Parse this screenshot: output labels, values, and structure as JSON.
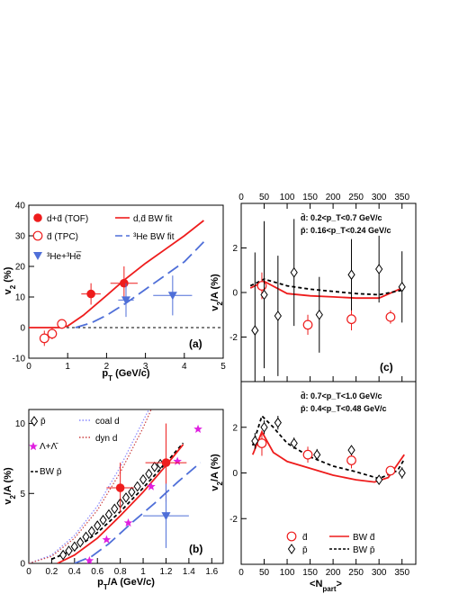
{
  "chart_data": [
    {
      "panel": "a",
      "type": "scatter",
      "tag": "(a)",
      "xlabel": "p_T (GeV/c)",
      "ylabel": "v_2 (%)",
      "xlim": [
        0,
        5
      ],
      "ylim": [
        -10,
        40
      ],
      "xticks": [
        0,
        1,
        2,
        3,
        4,
        5
      ],
      "yticks": [
        -10,
        0,
        10,
        20,
        30,
        40
      ],
      "reference_line_y": 0,
      "legend": [
        {
          "label": "d+d̄ (TOF)",
          "marker": "filled-circle",
          "color": "#ee1c1c"
        },
        {
          "label": "d̄ (TPC)",
          "marker": "open-circle",
          "color": "#ee1c1c"
        },
        {
          "label": "³He+³He̅",
          "marker": "filled-triangle-down",
          "color": "#4f6fd8"
        },
        {
          "label": "d,d̄ BW fit",
          "line": "solid",
          "color": "#ee1c1c"
        },
        {
          "label": "³He BW fit",
          "line": "long-dash",
          "color": "#4f6fd8"
        }
      ],
      "series": [
        {
          "name": "d+d̄ (TOF)",
          "style": "filled-circle",
          "color": "#ee1c1c",
          "points": [
            {
              "x": 1.6,
              "y": 11,
              "yerr": 3.5,
              "xerr": 0.25
            },
            {
              "x": 2.45,
              "y": 14.5,
              "yerr": 5.5,
              "xerr": 0.35
            }
          ]
        },
        {
          "name": "d̄ (TPC)",
          "style": "open-circle",
          "color": "#ee1c1c",
          "points": [
            {
              "x": 0.4,
              "y": -3.5,
              "yerr": 2.5
            },
            {
              "x": 0.6,
              "y": -2,
              "yerr": 1.8
            },
            {
              "x": 0.85,
              "y": 1.2,
              "yerr": 1.5
            }
          ]
        },
        {
          "name": "³He+³He̅",
          "style": "filled-triangle-down",
          "color": "#4f6fd8",
          "points": [
            {
              "x": 2.5,
              "y": 9,
              "yerr": 5.5,
              "xerr": 0.2
            },
            {
              "x": 3.7,
              "y": 10.5,
              "yerr": 6.5,
              "xerr": 0.5
            }
          ]
        },
        {
          "name": "d,d̄ BW fit",
          "style": "line-solid",
          "color": "#ee1c1c",
          "points": [
            {
              "x": 0,
              "y": 0
            },
            {
              "x": 0.8,
              "y": 0
            },
            {
              "x": 1,
              "y": 0.5
            },
            {
              "x": 1.4,
              "y": 4
            },
            {
              "x": 2,
              "y": 10.5
            },
            {
              "x": 2.5,
              "y": 16
            },
            {
              "x": 3,
              "y": 21
            },
            {
              "x": 3.5,
              "y": 25.5
            },
            {
              "x": 4,
              "y": 30
            },
            {
              "x": 4.5,
              "y": 35
            }
          ]
        },
        {
          "name": "³He BW fit",
          "style": "line-dash",
          "color": "#4f6fd8",
          "points": [
            {
              "x": 1.2,
              "y": 0
            },
            {
              "x": 1.6,
              "y": 1.5
            },
            {
              "x": 2,
              "y": 4
            },
            {
              "x": 2.5,
              "y": 8
            },
            {
              "x": 3,
              "y": 12.5
            },
            {
              "x": 3.5,
              "y": 17
            },
            {
              "x": 4,
              "y": 21.5
            },
            {
              "x": 4.5,
              "y": 28
            }
          ]
        }
      ]
    },
    {
      "panel": "b",
      "type": "scatter",
      "tag": "(b)",
      "xlabel": "p_T/A (GeV/c)",
      "ylabel": "v_2/A (%)",
      "xlim": [
        0,
        1.7
      ],
      "ylim": [
        0,
        11
      ],
      "xticks": [
        0,
        0.2,
        0.4,
        0.6,
        0.8,
        1,
        1.2,
        1.4,
        1.6
      ],
      "yticks": [
        0,
        5,
        10
      ],
      "legend": [
        {
          "label": "p̄",
          "marker": "open-diamond",
          "color": "#000000"
        },
        {
          "label": "Λ+Λ̄",
          "marker": "star",
          "color": "#e020e0"
        },
        {
          "label": "BW p̄",
          "line": "short-dash",
          "color": "#000000"
        },
        {
          "label": "coal d",
          "line": "dotted",
          "color": "#8888ff"
        },
        {
          "label": "dyn d",
          "line": "dotted",
          "color": "#cc4444"
        }
      ],
      "series": [
        {
          "name": "p̄",
          "style": "open-diamond",
          "color": "#000000",
          "points": [
            {
              "x": 0.3,
              "y": 0.6
            },
            {
              "x": 0.35,
              "y": 0.9
            },
            {
              "x": 0.4,
              "y": 1.2
            },
            {
              "x": 0.45,
              "y": 1.5
            },
            {
              "x": 0.5,
              "y": 1.9
            },
            {
              "x": 0.55,
              "y": 2.3
            },
            {
              "x": 0.6,
              "y": 2.7
            },
            {
              "x": 0.65,
              "y": 3.1
            },
            {
              "x": 0.7,
              "y": 3.5
            },
            {
              "x": 0.75,
              "y": 3.9
            },
            {
              "x": 0.8,
              "y": 4.3
            },
            {
              "x": 0.85,
              "y": 4.7
            },
            {
              "x": 0.9,
              "y": 5.1
            },
            {
              "x": 0.95,
              "y": 5.5
            },
            {
              "x": 1.0,
              "y": 6.0
            },
            {
              "x": 1.05,
              "y": 6.4
            },
            {
              "x": 1.1,
              "y": 6.9
            },
            {
              "x": 1.15,
              "y": 7.1
            }
          ]
        },
        {
          "name": "Λ+Λ̄",
          "style": "star",
          "color": "#e020e0",
          "points": [
            {
              "x": 0.53,
              "y": 0.2
            },
            {
              "x": 0.68,
              "y": 1.7
            },
            {
              "x": 0.87,
              "y": 2.9
            },
            {
              "x": 1.07,
              "y": 5.5
            },
            {
              "x": 1.3,
              "y": 7.3
            },
            {
              "x": 1.48,
              "y": 9.6
            }
          ]
        },
        {
          "name": "d (a)",
          "style": "filled-circle",
          "color": "#ee1c1c",
          "points": [
            {
              "x": 0.8,
              "y": 5.4,
              "yerr": 1.8,
              "xerr": 0.12
            },
            {
              "x": 1.2,
              "y": 7.2,
              "yerr": 2.8,
              "xerr": 0.18
            }
          ]
        },
        {
          "name": "³He (a)",
          "style": "filled-triangle-down",
          "color": "#4f6fd8",
          "points": [
            {
              "x": 1.2,
              "y": 3.4,
              "yerr": 2.3,
              "xerr": 0.2
            }
          ]
        },
        {
          "name": "BW p̄",
          "style": "line-shortdash",
          "color": "#000000",
          "points": [
            {
              "x": 0.2,
              "y": 0.3
            },
            {
              "x": 0.4,
              "y": 1.0
            },
            {
              "x": 0.6,
              "y": 2.2
            },
            {
              "x": 0.8,
              "y": 3.7
            },
            {
              "x": 1.0,
              "y": 5.4
            },
            {
              "x": 1.2,
              "y": 7.2
            },
            {
              "x": 1.35,
              "y": 8.6
            }
          ]
        },
        {
          "name": "BW d",
          "style": "line-solid",
          "color": "#ee1c1c",
          "points": [
            {
              "x": 0.25,
              "y": 0
            },
            {
              "x": 0.4,
              "y": 0.6
            },
            {
              "x": 0.6,
              "y": 1.8
            },
            {
              "x": 0.8,
              "y": 3.4
            },
            {
              "x": 1.0,
              "y": 5.1
            },
            {
              "x": 1.2,
              "y": 7.0
            },
            {
              "x": 1.35,
              "y": 8.5
            }
          ]
        },
        {
          "name": "BW ³He",
          "style": "line-dash",
          "color": "#4f6fd8",
          "points": [
            {
              "x": 0.4,
              "y": 0
            },
            {
              "x": 0.55,
              "y": 0.5
            },
            {
              "x": 0.7,
              "y": 1.4
            },
            {
              "x": 0.9,
              "y": 2.9
            },
            {
              "x": 1.1,
              "y": 4.3
            },
            {
              "x": 1.3,
              "y": 5.8
            },
            {
              "x": 1.5,
              "y": 7.2
            }
          ]
        },
        {
          "name": "coal d",
          "style": "line-dotted",
          "color": "#8888ff",
          "points": [
            {
              "x": 0,
              "y": 0
            },
            {
              "x": 0.2,
              "y": 0.6
            },
            {
              "x": 0.4,
              "y": 2.0
            },
            {
              "x": 0.6,
              "y": 4.1
            },
            {
              "x": 0.8,
              "y": 6.9
            },
            {
              "x": 1.0,
              "y": 10.2
            },
            {
              "x": 1.05,
              "y": 11
            }
          ]
        },
        {
          "name": "dyn d",
          "style": "line-dotted",
          "color": "#cc4444",
          "points": [
            {
              "x": 0,
              "y": 0
            },
            {
              "x": 0.2,
              "y": 0.5
            },
            {
              "x": 0.4,
              "y": 1.8
            },
            {
              "x": 0.6,
              "y": 3.8
            },
            {
              "x": 0.8,
              "y": 6.5
            },
            {
              "x": 1.0,
              "y": 9.7
            },
            {
              "x": 1.07,
              "y": 11
            }
          ]
        }
      ]
    },
    {
      "panel": "c-top",
      "type": "scatter",
      "tag": "(c)",
      "xlabel": "",
      "ylabel": "v_2/A (%)",
      "xlim": [
        0,
        380
      ],
      "ylim": [
        -4,
        4
      ],
      "xticks": [
        0,
        50,
        100,
        150,
        200,
        250,
        300,
        350
      ],
      "top_axis_labels": [
        "0",
        "50",
        "100",
        "150",
        "200",
        "250",
        "300",
        "350"
      ],
      "yticks": [
        -2,
        0,
        2
      ],
      "cuts": [
        "d̄: 0.2<p_T<0.7 GeV/c",
        "p̄: 0.16<p_T<0.24 GeV/c"
      ],
      "series": [
        {
          "name": "d̄",
          "style": "open-circle",
          "color": "#ee1c1c",
          "points": [
            {
              "x": 45,
              "y": 0.3,
              "yerr": 0.6
            },
            {
              "x": 145,
              "y": -1.45,
              "yerr": 0.45
            },
            {
              "x": 240,
              "y": -1.2,
              "yerr": 0.5
            },
            {
              "x": 325,
              "y": -1.1,
              "yerr": 0.3
            }
          ]
        },
        {
          "name": "p̄",
          "style": "open-diamond",
          "color": "#000000",
          "points": [
            {
              "x": 30,
              "y": -1.7,
              "yerr": 3.5
            },
            {
              "x": 50,
              "y": -0.1,
              "yerr": 3.3
            },
            {
              "x": 80,
              "y": -1.05,
              "yerr": 2.7
            },
            {
              "x": 115,
              "y": 0.9,
              "yerr": 2.4
            },
            {
              "x": 170,
              "y": -1.0,
              "yerr": 1.7
            },
            {
              "x": 240,
              "y": 0.8,
              "yerr": 1.6
            },
            {
              "x": 300,
              "y": 1.05,
              "yerr": 1.5
            },
            {
              "x": 350,
              "y": 0.25,
              "yerr": 1.6
            }
          ]
        },
        {
          "name": "BW d̄",
          "style": "line-solid",
          "color": "#ee1c1c",
          "points": [
            {
              "x": 20,
              "y": 0.2
            },
            {
              "x": 50,
              "y": 0.5
            },
            {
              "x": 100,
              "y": -0.05
            },
            {
              "x": 150,
              "y": -0.15
            },
            {
              "x": 200,
              "y": -0.2
            },
            {
              "x": 250,
              "y": -0.25
            },
            {
              "x": 300,
              "y": -0.25
            },
            {
              "x": 350,
              "y": 0.2
            }
          ]
        },
        {
          "name": "BW p̄",
          "style": "line-shortdash",
          "color": "#000000",
          "points": [
            {
              "x": 20,
              "y": 0.3
            },
            {
              "x": 50,
              "y": 0.6
            },
            {
              "x": 100,
              "y": 0.3
            },
            {
              "x": 150,
              "y": 0.15
            },
            {
              "x": 200,
              "y": 0.05
            },
            {
              "x": 250,
              "y": -0.05
            },
            {
              "x": 300,
              "y": -0.1
            },
            {
              "x": 350,
              "y": 0.1
            }
          ]
        }
      ]
    },
    {
      "panel": "c-bottom",
      "type": "scatter",
      "tag": "",
      "xlabel": "<N_part>",
      "ylabel": "v_2/A (%)",
      "xlim": [
        0,
        380
      ],
      "ylim": [
        -4,
        4
      ],
      "xticks": [
        0,
        50,
        100,
        150,
        200,
        250,
        300,
        350
      ],
      "yticks": [
        -2,
        0,
        2
      ],
      "cuts": [
        "d̄: 0.7<p_T<1.0 GeV/c",
        "p̄: 0.4<p_T<0.48 GeV/c"
      ],
      "legend": [
        {
          "label": "d̄",
          "marker": "open-circle",
          "color": "#ee1c1c"
        },
        {
          "label": "p̄",
          "marker": "open-diamond",
          "color": "#000000"
        },
        {
          "label": "BW d̄",
          "line": "solid",
          "color": "#ee1c1c"
        },
        {
          "label": "BW p̄",
          "line": "short-dash",
          "color": "#000000"
        }
      ],
      "series": [
        {
          "name": "d̄",
          "style": "open-circle",
          "color": "#ee1c1c",
          "points": [
            {
              "x": 45,
              "y": 1.3,
              "yerr": 0.55
            },
            {
              "x": 145,
              "y": 0.8,
              "yerr": 0.35
            },
            {
              "x": 240,
              "y": 0.55,
              "yerr": 0.35
            },
            {
              "x": 325,
              "y": 0.1,
              "yerr": 0.2
            }
          ]
        },
        {
          "name": "p̄",
          "style": "open-diamond",
          "color": "#000000",
          "points": [
            {
              "x": 30,
              "y": 1.4,
              "yerr": 0.35
            },
            {
              "x": 50,
              "y": 2.0,
              "yerr": 0.3
            },
            {
              "x": 80,
              "y": 2.2,
              "yerr": 0.3
            },
            {
              "x": 115,
              "y": 1.3,
              "yerr": 0.25
            },
            {
              "x": 165,
              "y": 0.8,
              "yerr": 0.25
            },
            {
              "x": 240,
              "y": 1.0,
              "yerr": 0.2
            },
            {
              "x": 300,
              "y": -0.3,
              "yerr": 0.2
            },
            {
              "x": 350,
              "y": 0.0,
              "yerr": 0.25
            }
          ]
        },
        {
          "name": "BW d̄",
          "style": "line-solid",
          "color": "#ee1c1c",
          "points": [
            {
              "x": 25,
              "y": 0.8
            },
            {
              "x": 45,
              "y": 1.8
            },
            {
              "x": 70,
              "y": 0.9
            },
            {
              "x": 100,
              "y": 0.5
            },
            {
              "x": 150,
              "y": 0.2
            },
            {
              "x": 200,
              "y": -0.1
            },
            {
              "x": 250,
              "y": -0.3
            },
            {
              "x": 290,
              "y": -0.4
            },
            {
              "x": 320,
              "y": -0.2
            },
            {
              "x": 355,
              "y": 0.8
            }
          ]
        },
        {
          "name": "BW p̄",
          "style": "line-shortdash",
          "color": "#000000",
          "points": [
            {
              "x": 25,
              "y": 1.2
            },
            {
              "x": 45,
              "y": 2.5
            },
            {
              "x": 70,
              "y": 2.0
            },
            {
              "x": 100,
              "y": 1.3
            },
            {
              "x": 150,
              "y": 0.7
            },
            {
              "x": 200,
              "y": 0.3
            },
            {
              "x": 250,
              "y": 0.05
            },
            {
              "x": 300,
              "y": -0.25
            },
            {
              "x": 340,
              "y": 0.1
            },
            {
              "x": 355,
              "y": 0.6
            }
          ]
        }
      ]
    }
  ]
}
